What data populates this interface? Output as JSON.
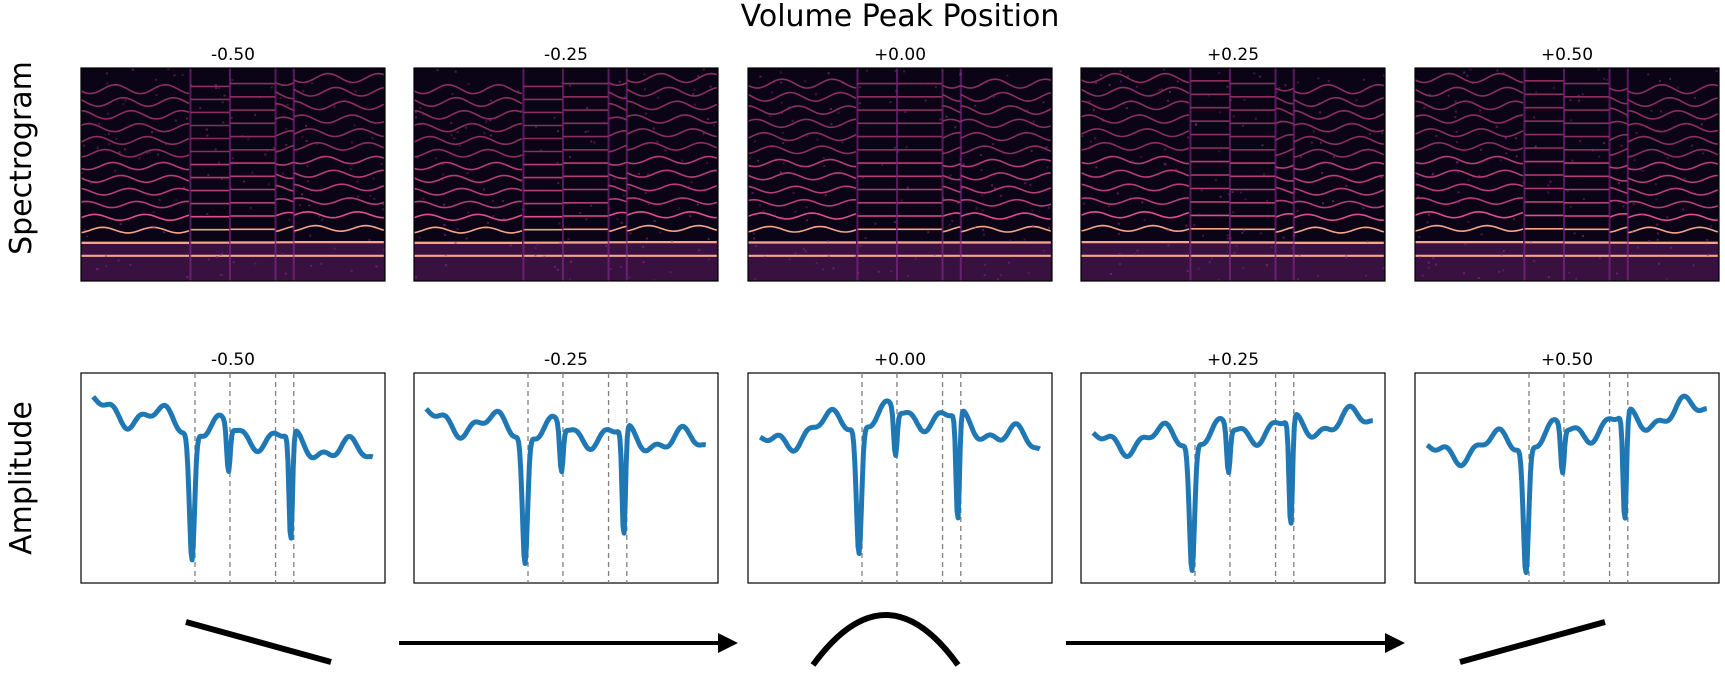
{
  "title": "Volume Peak Position",
  "row_labels": {
    "spectrogram": "Spectrogram",
    "amplitude": "Amplitude"
  },
  "colors": {
    "amplitude_line": "#1f77b4",
    "divider_line": "#7f7f7f",
    "spectrogram_background": "#0b0416",
    "spectrogram_harmonic": "#f5a58a",
    "spectrogram_mid": "#8c2a8e"
  },
  "chart_data": [
    {
      "type": "heatmap",
      "row": "spectrogram",
      "panels": [
        {
          "title": "-0.50",
          "peak_position": -0.5
        },
        {
          "title": "-0.25",
          "peak_position": -0.25
        },
        {
          "title": "+0.00",
          "peak_position": 0.0
        },
        {
          "title": "+0.25",
          "peak_position": 0.25
        },
        {
          "title": "+0.50",
          "peak_position": 0.5
        }
      ],
      "colormap": "magma",
      "axes_ticks": false
    },
    {
      "type": "line",
      "row": "amplitude",
      "axes_ticks": false,
      "x_range": [
        0,
        1
      ],
      "y_range": [
        0,
        1
      ],
      "panels": [
        {
          "title": "-0.50",
          "peak_position": -0.5,
          "dividers": [
            0.375,
            0.49,
            0.64,
            0.7
          ]
        },
        {
          "title": "-0.25",
          "peak_position": -0.25,
          "dividers": [
            0.375,
            0.49,
            0.64,
            0.7
          ]
        },
        {
          "title": "+0.00",
          "peak_position": 0.0,
          "dividers": [
            0.375,
            0.49,
            0.64,
            0.7
          ]
        },
        {
          "title": "+0.25",
          "peak_position": 0.25,
          "dividers": [
            0.375,
            0.49,
            0.64,
            0.7
          ]
        },
        {
          "title": "+0.50",
          "peak_position": 0.5,
          "dividers": [
            0.375,
            0.49,
            0.64,
            0.7
          ]
        }
      ]
    }
  ],
  "envelope_glyphs": [
    {
      "shape": "falling-line"
    },
    {
      "shape": "right-arrow"
    },
    {
      "shape": "arch"
    },
    {
      "shape": "right-arrow"
    },
    {
      "shape": "rising-line"
    }
  ]
}
